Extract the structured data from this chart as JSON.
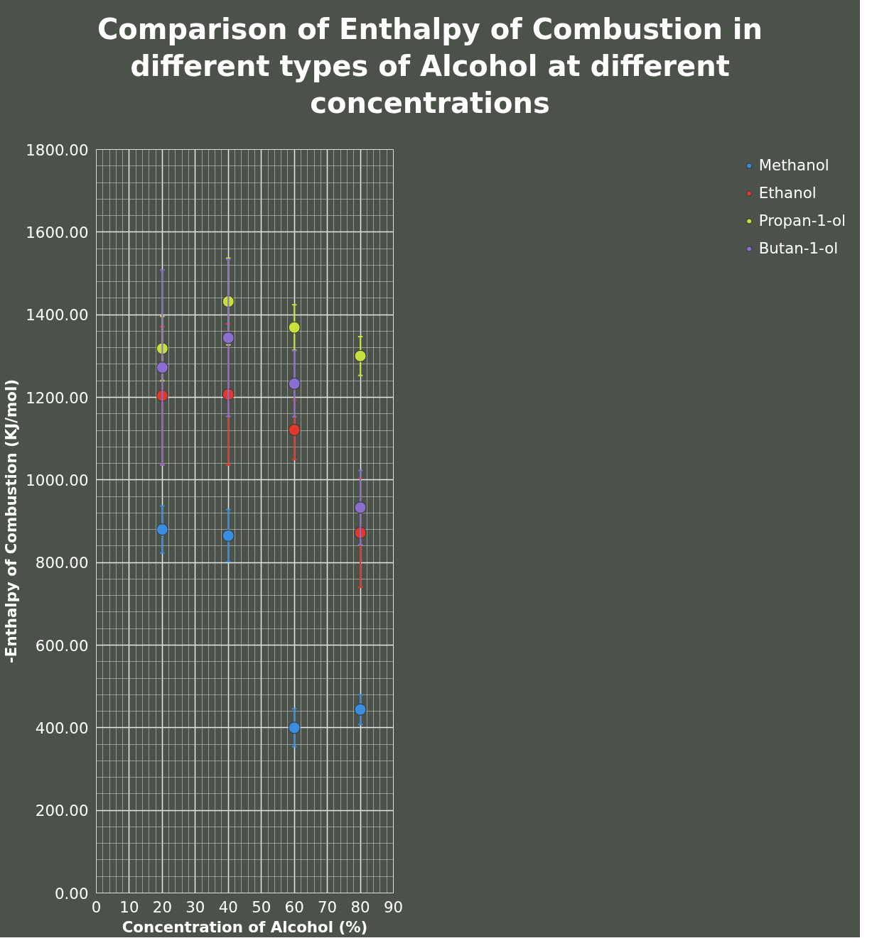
{
  "chart_data": {
    "type": "scatter",
    "title": "Comparison of Enthalpy of Combustion in\ndifferent types of Alcohol at different\nconcentrations",
    "xlabel": "Concentration of Alcohol (%)",
    "ylabel": "-Enthalpy of Combustion (KJ/mol)",
    "x": [
      20,
      40,
      60,
      80
    ],
    "series": [
      {
        "name": "Methanol",
        "color": "#3a8ee0",
        "values": [
          880,
          865,
          400,
          444
        ],
        "errors": [
          57,
          63,
          46,
          36
        ]
      },
      {
        "name": "Ethanol",
        "color": "#e03a2f",
        "values": [
          1204,
          1207,
          1121,
          872
        ],
        "errors": [
          167,
          171,
          72,
          132
        ]
      },
      {
        "name": "Propan-1-ol",
        "color": "#c8e03a",
        "values": [
          1318,
          1432,
          1369,
          1300
        ],
        "errors": [
          78,
          105,
          55,
          47
        ]
      },
      {
        "name": "Butan-1-ol",
        "color": "#8a6fd0",
        "values": [
          1272,
          1344,
          1233,
          933
        ],
        "errors": [
          236,
          190,
          80,
          90
        ]
      }
    ],
    "xlim": [
      0,
      90
    ],
    "xticks": [
      0,
      10,
      20,
      30,
      40,
      50,
      60,
      70,
      80,
      90
    ],
    "ylim": [
      0,
      1800
    ],
    "yticks": [
      {
        "value": 0,
        "label": "0.00"
      },
      {
        "value": 200,
        "label": "200.00"
      },
      {
        "value": 400,
        "label": "400.00"
      },
      {
        "value": 600,
        "label": "600.00"
      },
      {
        "value": 800,
        "label": "800.00"
      },
      {
        "value": 1000,
        "label": "1000.00"
      },
      {
        "value": 1200,
        "label": "1200.00"
      },
      {
        "value": 1400,
        "label": "1400.00"
      },
      {
        "value": 1600,
        "label": "1600.00"
      },
      {
        "value": 1800,
        "label": "1800.00"
      }
    ],
    "grid": true,
    "legend": "right",
    "marker": "circle"
  }
}
